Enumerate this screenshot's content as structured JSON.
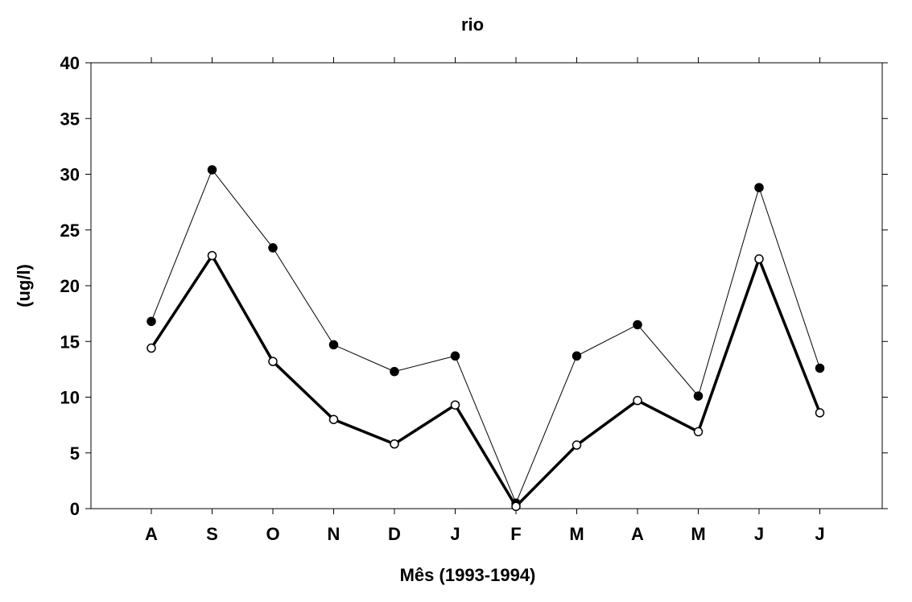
{
  "chart_data": {
    "type": "line",
    "title": "rio",
    "xlabel": "Mês (1993-1994)",
    "ylabel": "(ug/l)",
    "categories": [
      "A",
      "S",
      "O",
      "N",
      "D",
      "J",
      "F",
      "M",
      "A",
      "M",
      "J",
      "J"
    ],
    "ylim": [
      0,
      40
    ],
    "yticks": [
      "0",
      "5",
      "10",
      "15",
      "20",
      "25",
      "30",
      "35",
      "40"
    ],
    "grid": false,
    "legend": "none",
    "series": [
      {
        "values": [
          16.8,
          30.4,
          23.4,
          14.7,
          12.3,
          13.7,
          0.5,
          13.7,
          16.5,
          10.1,
          28.8,
          12.6
        ],
        "marker": "filled-circle",
        "line": "thin",
        "color": "#000000"
      },
      {
        "values": [
          14.4,
          22.7,
          13.2,
          8.0,
          5.8,
          9.3,
          0.2,
          5.7,
          9.7,
          6.9,
          22.4,
          8.6
        ],
        "marker": "open-circle",
        "line": "thick",
        "color": "#000000"
      }
    ]
  }
}
